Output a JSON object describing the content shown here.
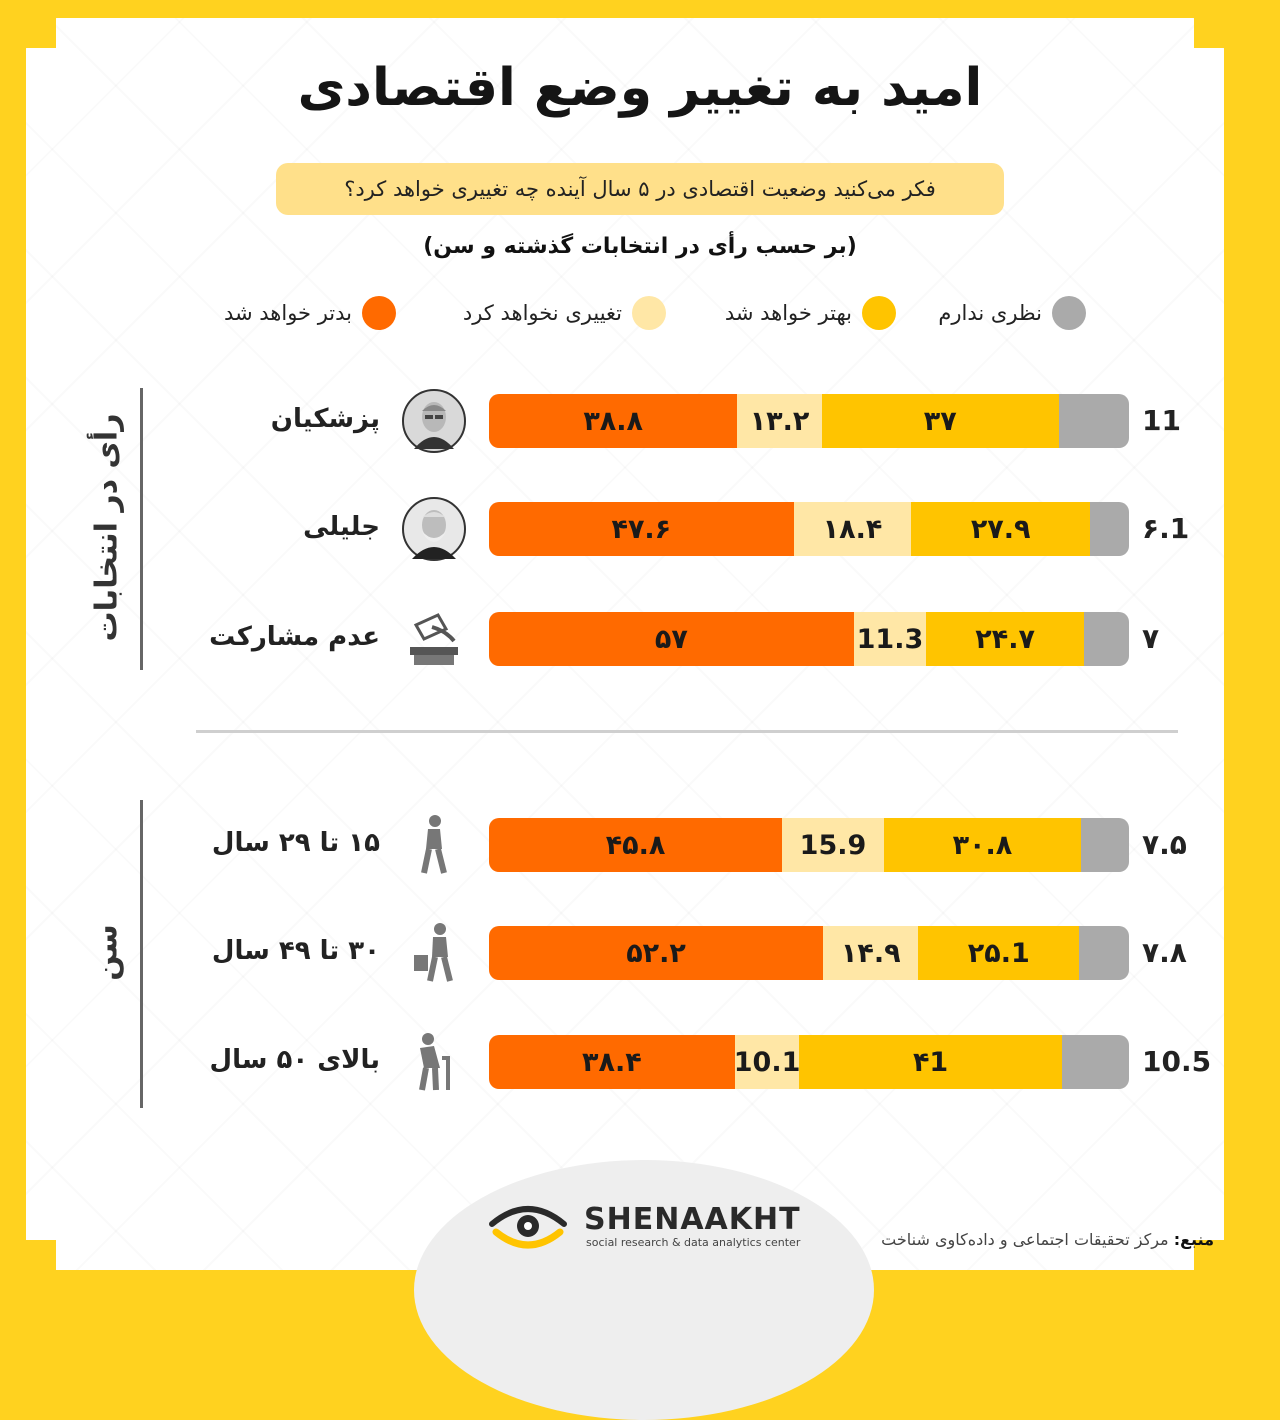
{
  "title": "امید به تغییر وضع اقتصادی",
  "question": "فکر می‌کنید وضعیت اقتصادی در ۵ سال آینده چه تغییری خواهد کرد؟",
  "subtitle": "(بر حسب رأی در انتخابات گذشته و سن)",
  "colors": {
    "worse": "#ff6a00",
    "no_change": "#ffe7a6",
    "better": "#ffc400",
    "no_opinion": "#aaaaaa"
  },
  "legend": [
    {
      "key": "no_opinion",
      "label": "نظری ندارم"
    },
    {
      "key": "better",
      "label": "بهتر خواهد شد"
    },
    {
      "key": "no_change",
      "label": "تغییری نخواهد کرد"
    },
    {
      "key": "worse",
      "label": "بدتر خواهد شد"
    }
  ],
  "group_labels": {
    "vote": "رأی در انتخابات",
    "age": "سن"
  },
  "chart_data": {
    "type": "bar",
    "stacked": true,
    "orientation": "horizontal",
    "unit": "percent",
    "series_order": [
      "worse",
      "no_change",
      "better",
      "no_opinion"
    ],
    "rows": [
      {
        "group": "vote",
        "label": "پزشکیان",
        "icon": "pezeshkian-portrait-icon",
        "values": {
          "worse": 38.8,
          "no_change": 13.2,
          "better": 37,
          "no_opinion": 11
        },
        "display": {
          "worse": "۳۸.۸",
          "no_change": "۱۳.۲",
          "better": "۳۷",
          "no_opinion": "11"
        }
      },
      {
        "group": "vote",
        "label": "جلیلی",
        "icon": "jalili-portrait-icon",
        "values": {
          "worse": 47.6,
          "no_change": 18.4,
          "better": 27.9,
          "no_opinion": 6.1
        },
        "display": {
          "worse": "۴۷.۶",
          "no_change": "۱۸.۴",
          "better": "۲۷.۹",
          "no_opinion": "۶.1"
        }
      },
      {
        "group": "vote",
        "label": "عدم مشارکت",
        "icon": "ballot-box-icon",
        "values": {
          "worse": 57,
          "no_change": 11.3,
          "better": 24.7,
          "no_opinion": 7
        },
        "display": {
          "worse": "۵۷",
          "no_change": "11.3",
          "better": "۲۴.۷",
          "no_opinion": "۷"
        }
      },
      {
        "group": "age",
        "label": "۱۵ تا ۲۹ سال",
        "icon": "young-walker-icon",
        "values": {
          "worse": 45.8,
          "no_change": 15.9,
          "better": 30.8,
          "no_opinion": 7.5
        },
        "display": {
          "worse": "۴۵.۸",
          "no_change": "15.9",
          "better": "۳۰.۸",
          "no_opinion": "۷.۵"
        }
      },
      {
        "group": "age",
        "label": "۳۰ تا ۴۹ سال",
        "icon": "adult-with-briefcase-icon",
        "values": {
          "worse": 52.2,
          "no_change": 14.9,
          "better": 25.1,
          "no_opinion": 7.8
        },
        "display": {
          "worse": "۵۲.۲",
          "no_change": "۱۴.۹",
          "better": "۲۵.1",
          "no_opinion": "۷.۸"
        }
      },
      {
        "group": "age",
        "label": "بالای ۵۰ سال",
        "icon": "elderly-with-cane-icon",
        "values": {
          "worse": 38.4,
          "no_change": 10.1,
          "better": 41,
          "no_opinion": 10.5
        },
        "display": {
          "worse": "۳۸.۴",
          "no_change": "10.1",
          "better": "۴1",
          "no_opinion": "10.5"
        }
      }
    ]
  },
  "footer": {
    "brand": "SHENAAKHT",
    "brand_sub": "social research & data analytics center",
    "source_label": "منبع:",
    "source_text": "مرکز تحقیقات اجتماعی و داده‌کاوی شناخت",
    "logo_icon": "eye-logo-icon"
  }
}
